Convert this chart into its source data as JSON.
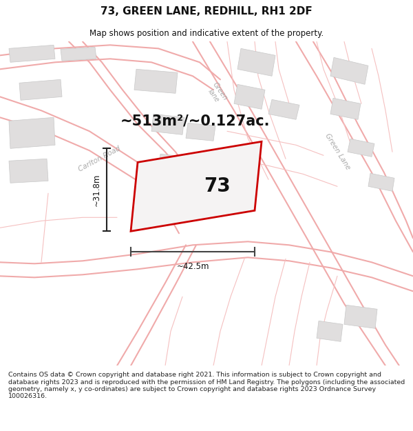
{
  "title": "73, GREEN LANE, REDHILL, RH1 2DF",
  "subtitle": "Map shows position and indicative extent of the property.",
  "area_label": "~513m²/~0.127ac.",
  "property_number": "73",
  "dim_width": "~42.5m",
  "dim_height": "~31.8m",
  "footer": "Contains OS data © Crown copyright and database right 2021. This information is subject to Crown copyright and database rights 2023 and is reproduced with the permission of HM Land Registry. The polygons (including the associated geometry, namely x, y co-ordinates) are subject to Crown copyright and database rights 2023 Ordnance Survey 100026316.",
  "map_bg": "#f7f5f5",
  "road_color": "#f0aaaa",
  "road_lw": 1.5,
  "building_fill": "#e0dede",
  "building_edge": "#c8c8c8",
  "property_fill": "#f0eeee",
  "property_edge": "#cc0000",
  "road_label_color": "#aaaaaa",
  "text_color": "#111111",
  "footer_color": "#222222",
  "title_fontsize": 11,
  "subtitle_fontsize": 8.5,
  "area_fontsize": 15,
  "number_fontsize": 20,
  "footer_fontsize": 6.8
}
